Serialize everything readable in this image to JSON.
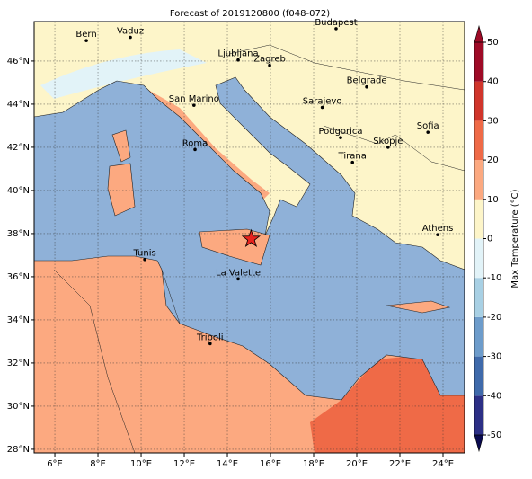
{
  "chart_data": {
    "type": "map",
    "title": "Forecast of 2019120800 (f048-072)",
    "xlim": [
      5.04,
      25.0
    ],
    "ylim": [
      27.83,
      47.83
    ],
    "xticks": [
      {
        "value": 6,
        "label": "6°E"
      },
      {
        "value": 8,
        "label": "8°E"
      },
      {
        "value": 10,
        "label": "10°E"
      },
      {
        "value": 12,
        "label": "12°E"
      },
      {
        "value": 14,
        "label": "14°E"
      },
      {
        "value": 16,
        "label": "16°E"
      },
      {
        "value": 18,
        "label": "18°E"
      },
      {
        "value": 20,
        "label": "20°E"
      },
      {
        "value": 22,
        "label": "22°E"
      },
      {
        "value": 24,
        "label": "24°E"
      }
    ],
    "yticks": [
      {
        "value": 28,
        "label": "28°N"
      },
      {
        "value": 30,
        "label": "30°N"
      },
      {
        "value": 32,
        "label": "32°N"
      },
      {
        "value": 34,
        "label": "34°N"
      },
      {
        "value": 36,
        "label": "36°N"
      },
      {
        "value": 38,
        "label": "38°N"
      },
      {
        "value": 40,
        "label": "40°N"
      },
      {
        "value": 42,
        "label": "42°N"
      },
      {
        "value": 44,
        "label": "44°N"
      },
      {
        "value": 46,
        "label": "46°N"
      }
    ],
    "grid": true,
    "cities": [
      {
        "name": "Bern",
        "lon": 7.46,
        "lat": 46.95
      },
      {
        "name": "Vaduz",
        "lon": 9.5,
        "lat": 47.1
      },
      {
        "name": "Budapest",
        "lon": 19.04,
        "lat": 47.5
      },
      {
        "name": "Ljubljana",
        "lon": 14.5,
        "lat": 46.05
      },
      {
        "name": "Zagreb",
        "lon": 15.96,
        "lat": 45.8
      },
      {
        "name": "Belgrade",
        "lon": 20.46,
        "lat": 44.8
      },
      {
        "name": "Sarajevo",
        "lon": 18.4,
        "lat": 43.85
      },
      {
        "name": "San Marino",
        "lon": 12.45,
        "lat": 43.95
      },
      {
        "name": "Sofia",
        "lon": 23.3,
        "lat": 42.7
      },
      {
        "name": "Podgorica",
        "lon": 19.25,
        "lat": 42.45
      },
      {
        "name": "Skopje",
        "lon": 21.45,
        "lat": 42.0
      },
      {
        "name": "Roma",
        "lon": 12.5,
        "lat": 41.9
      },
      {
        "name": "Tirana",
        "lon": 19.8,
        "lat": 41.3
      },
      {
        "name": "Athens",
        "lon": 23.75,
        "lat": 37.95
      },
      {
        "name": "Tunis",
        "lon": 10.17,
        "lat": 36.8
      },
      {
        "name": "La Valette",
        "lon": 14.5,
        "lat": 35.9
      },
      {
        "name": "Tripoli",
        "lon": 13.2,
        "lat": 32.9
      }
    ],
    "marker": {
      "lon": 15.1,
      "lat": 37.75,
      "color": "#e8231d"
    },
    "colorbar": {
      "label": "Max Temperature (°C)",
      "lim": [
        -50,
        50
      ],
      "ticks": [
        -50,
        -40,
        -30,
        -20,
        -10,
        0,
        10,
        20,
        30,
        40,
        50
      ],
      "levels": [
        -50,
        -40,
        -30,
        -20,
        -10,
        0,
        10,
        20,
        30,
        40,
        50
      ],
      "colors": [
        "#2c2f86",
        "#3f6aab",
        "#6d9ccb",
        "#a8d0e4",
        "#e2f3f8",
        "#fdf5c9",
        "#fca980",
        "#ef6a47",
        "#d0352b",
        "#9e0a26"
      ]
    }
  }
}
